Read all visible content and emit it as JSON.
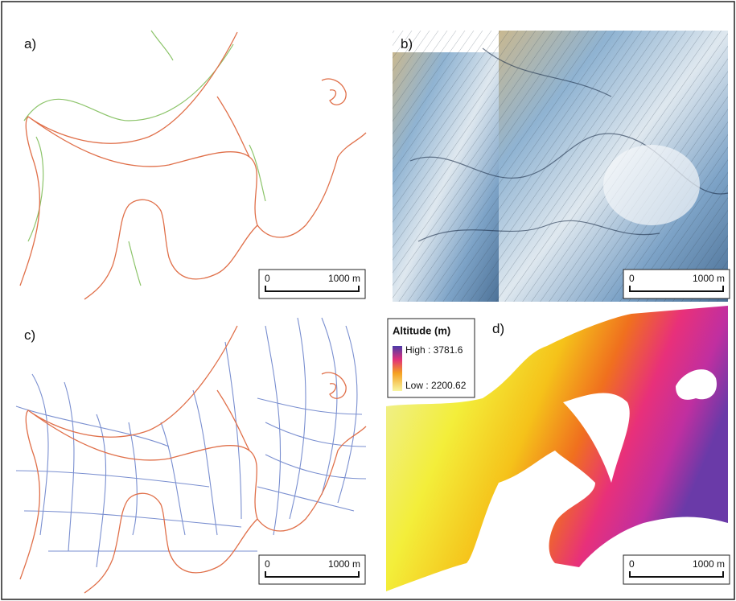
{
  "panels": [
    {
      "label": "a)",
      "scale_bar": {
        "start": "0",
        "end": "1000 m"
      }
    },
    {
      "label": "b)",
      "scale_bar": {
        "start": "0",
        "end": "1000 m"
      }
    },
    {
      "label": "c)",
      "scale_bar": {
        "start": "0",
        "end": "1000 m"
      }
    },
    {
      "label": "d)",
      "scale_bar": {
        "start": "0",
        "end": "1000 m"
      }
    }
  ],
  "legend": {
    "title": "Altitude (m)",
    "high": "High : 3781.6",
    "low": "Low : 2200.62"
  }
}
